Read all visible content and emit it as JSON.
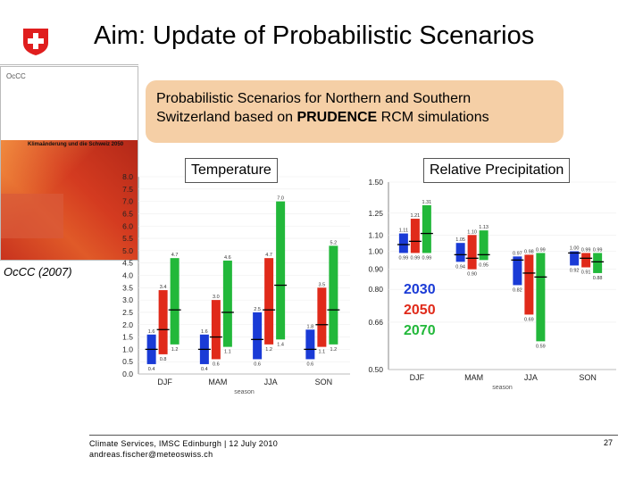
{
  "header": {
    "title": "Aim: Update of Probabilistic Scenarios"
  },
  "report_cover": {
    "label": "OcCC (2007)",
    "logo_text": "OcCC",
    "cover_title": "Klimaänderung und die Schweiz 2050"
  },
  "callout": {
    "line1": "Probabilistic Scenarios for Northern and Southern",
    "line2_prefix": "Switzerland based on ",
    "line2_bold": "PRUDENCE",
    "line2_suffix": " RCM simulations"
  },
  "colors": {
    "2030": "#1a3bd6",
    "2050": "#e02a1a",
    "2070": "#22b83a",
    "callout": "#f5cfa6"
  },
  "legend": [
    {
      "label": "2030",
      "color": "#1a3bd6"
    },
    {
      "label": "2050",
      "color": "#e02a1a"
    },
    {
      "label": "2070",
      "color": "#22b83a"
    }
  ],
  "chart_data": [
    {
      "type": "box",
      "title": "Temperature",
      "xlabel": "season",
      "categories": [
        "DJF",
        "MAM",
        "JJA",
        "SON"
      ],
      "ylim": [
        0,
        8.0
      ],
      "yticks": [
        "0.0",
        "0.5",
        "1.0",
        "1.5",
        "2.0",
        "2.5",
        "3.0",
        "3.5",
        "4.0",
        "4.5",
        "5.0",
        "5.5",
        "6.0",
        "6.5",
        "7.0",
        "7.5",
        "8.0"
      ],
      "series": [
        {
          "name": "2030",
          "low": [
            0.4,
            0.4,
            0.6,
            0.6
          ],
          "median": [
            1.0,
            1.0,
            1.4,
            1.0
          ],
          "high": [
            1.6,
            1.6,
            2.5,
            1.8
          ]
        },
        {
          "name": "2050",
          "low": [
            0.8,
            0.6,
            1.2,
            1.1
          ],
          "median": [
            1.8,
            1.5,
            2.6,
            2.0
          ],
          "high": [
            3.4,
            3.0,
            4.7,
            3.5
          ]
        },
        {
          "name": "2070",
          "low": [
            1.2,
            1.1,
            1.4,
            1.2
          ],
          "median": [
            2.6,
            2.5,
            3.6,
            2.6
          ],
          "high": [
            4.7,
            4.6,
            7.0,
            5.2
          ]
        }
      ]
    },
    {
      "type": "box",
      "title": "Relative Precipitation",
      "xlabel": "season",
      "categories": [
        "DJF",
        "MAM",
        "JJA",
        "SON"
      ],
      "ylim": [
        0.5,
        1.5
      ],
      "yticks": [
        "0.50",
        "0.66",
        "0.80",
        "0.90",
        "1.00",
        "1.10",
        "1.25",
        "1.50"
      ],
      "series": [
        {
          "name": "2030",
          "low": [
            0.99,
            0.94,
            0.82,
            0.92
          ],
          "median": [
            1.04,
            0.98,
            0.95,
            0.99
          ],
          "high": [
            1.11,
            1.05,
            0.97,
            1.0
          ]
        },
        {
          "name": "2050",
          "low": [
            0.99,
            0.9,
            0.69,
            0.91
          ],
          "median": [
            1.06,
            0.96,
            0.88,
            0.96
          ],
          "high": [
            1.21,
            1.1,
            0.98,
            0.99
          ]
        },
        {
          "name": "2070",
          "low": [
            0.99,
            0.95,
            0.59,
            0.88
          ],
          "median": [
            1.11,
            0.98,
            0.86,
            0.94
          ],
          "high": [
            1.31,
            1.13,
            0.99,
            0.99
          ]
        }
      ]
    }
  ],
  "footer": {
    "line1": "Climate Services, IMSC Edinburgh | 12 July 2010",
    "line2": "andreas.fischer@meteoswiss.ch",
    "page": "27"
  }
}
